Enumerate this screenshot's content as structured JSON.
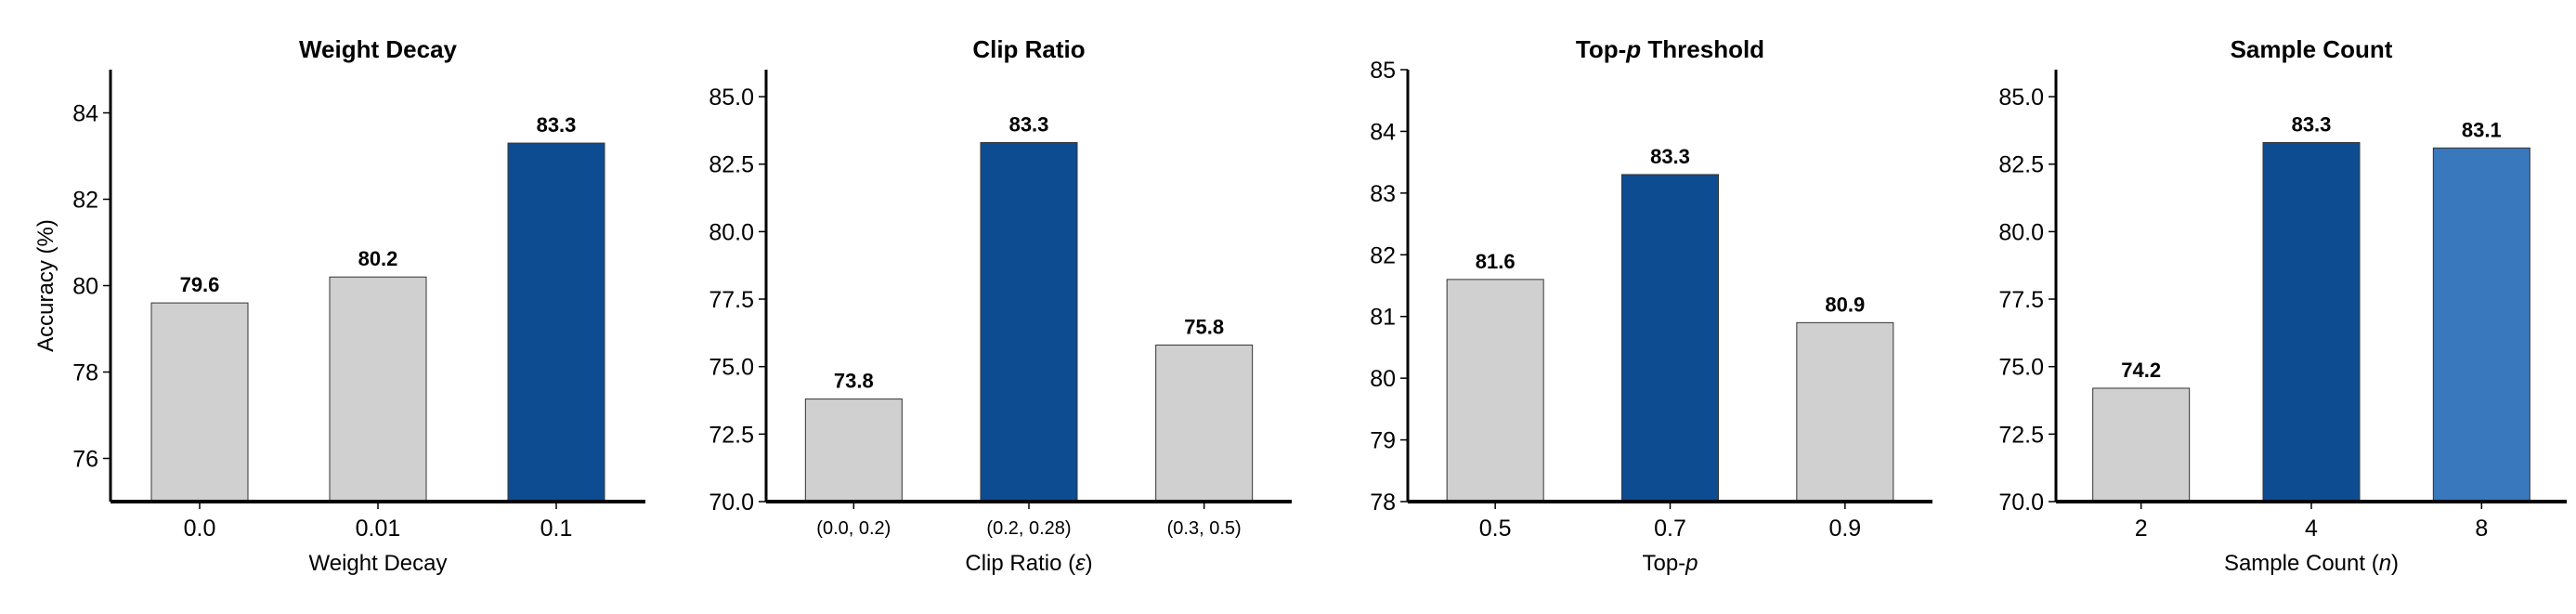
{
  "colors": {
    "default_bar": "#d0d0d0",
    "best_bar": "#0e4c92",
    "second_bar": "#3a78bd",
    "edge": "#333333"
  },
  "chart_data": [
    {
      "type": "bar",
      "title": "Weight Decay",
      "xlabel": "Weight Decay",
      "ylabel": "Accuracy (%)",
      "categories": [
        "0.0",
        "0.01",
        "0.1"
      ],
      "values": [
        79.6,
        80.2,
        83.3
      ],
      "data_labels": [
        "79.6",
        "80.2",
        "83.3"
      ],
      "highlight": [
        "default",
        "default",
        "best"
      ],
      "ylim": [
        75,
        85
      ],
      "yticks": [
        76,
        78,
        80,
        82,
        84
      ],
      "ytick_labels": [
        "76",
        "78",
        "80",
        "82",
        "84"
      ],
      "grid": false
    },
    {
      "type": "bar",
      "title": "Clip Ratio",
      "xlabel": "Clip Ratio (ε)",
      "ylabel": "",
      "categories": [
        "(0.0, 0.2)",
        "(0.2, 0.28)",
        "(0.3, 0.5)"
      ],
      "values": [
        73.8,
        83.3,
        75.8
      ],
      "data_labels": [
        "73.8",
        "83.3",
        "75.8"
      ],
      "highlight": [
        "default",
        "best",
        "default"
      ],
      "ylim": [
        70,
        86
      ],
      "yticks": [
        70,
        72.5,
        75,
        77.5,
        80,
        82.5,
        85
      ],
      "ytick_labels": [
        "70.0",
        "72.5",
        "75.0",
        "77.5",
        "80.0",
        "82.5",
        "85.0"
      ],
      "grid": false
    },
    {
      "type": "bar",
      "title": "Top-p Threshold",
      "xlabel": "Top-p",
      "ylabel": "",
      "categories": [
        "0.5",
        "0.7",
        "0.9"
      ],
      "values": [
        81.6,
        83.3,
        80.9
      ],
      "data_labels": [
        "81.6",
        "83.3",
        "80.9"
      ],
      "highlight": [
        "default",
        "best",
        "default"
      ],
      "ylim": [
        78,
        85
      ],
      "yticks": [
        78,
        79,
        80,
        81,
        82,
        83,
        84,
        85
      ],
      "ytick_labels": [
        "78",
        "79",
        "80",
        "81",
        "82",
        "83",
        "84",
        "85"
      ],
      "grid": false
    },
    {
      "type": "bar",
      "title": "Sample Count",
      "xlabel": "Sample Count (n)",
      "ylabel": "",
      "categories": [
        "2",
        "4",
        "8"
      ],
      "values": [
        74.2,
        83.3,
        83.1
      ],
      "data_labels": [
        "74.2",
        "83.3",
        "83.1"
      ],
      "highlight": [
        "default",
        "best",
        "second"
      ],
      "ylim": [
        70,
        86
      ],
      "yticks": [
        70,
        72.5,
        75,
        77.5,
        80,
        82.5,
        85
      ],
      "ytick_labels": [
        "70.0",
        "72.5",
        "75.0",
        "77.5",
        "80.0",
        "82.5",
        "85.0"
      ],
      "grid": false
    }
  ]
}
